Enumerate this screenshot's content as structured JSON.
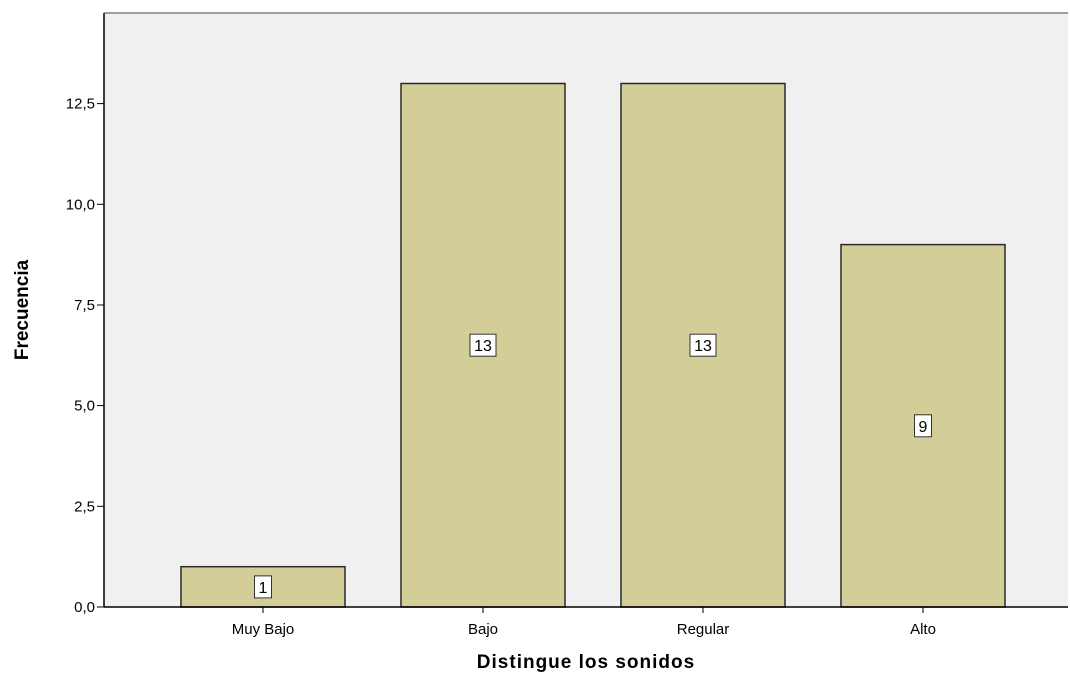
{
  "chart_data": {
    "type": "bar",
    "title": "",
    "xlabel": "Distingue los sonidos",
    "ylabel": "Frecuencia",
    "categories": [
      "Muy Bajo",
      "Bajo",
      "Regular",
      "Alto"
    ],
    "values": [
      1,
      13,
      13,
      9
    ],
    "data_labels": [
      "1",
      "13",
      "13",
      "9"
    ],
    "ylim": [
      0,
      14.75
    ],
    "yticks": [
      0,
      2.5,
      5,
      7.5,
      10,
      12.5
    ],
    "ytick_labels": [
      "0,0",
      "2,5",
      "5,0",
      "7,5",
      "10,0",
      "12,5"
    ],
    "grid": false,
    "legend": "none",
    "colors": {
      "bar_fill": "#d3ce98",
      "bar_stroke": "#2a2a2a",
      "plot_background": "#f0f0f0",
      "axis": "#000000",
      "label_box": "#ffffff"
    }
  }
}
